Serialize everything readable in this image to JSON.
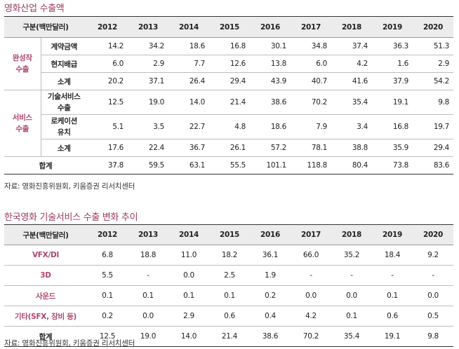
{
  "table1": {
    "title": "영화산업 수출액",
    "header_label": "구분(백만달러)",
    "years": [
      "2012",
      "2013",
      "2014",
      "2015",
      "2016",
      "2017",
      "2018",
      "2019",
      "2020"
    ],
    "groups": [
      {
        "name_line1": "완성작",
        "name_line2": "수출",
        "rows": [
          {
            "label": "계약금액",
            "values": [
              "14.2",
              "34.2",
              "18.6",
              "16.8",
              "30.1",
              "34.8",
              "37.4",
              "36.3",
              "51.3"
            ]
          },
          {
            "label": "현지배급",
            "values": [
              "6.0",
              "2.9",
              "7.7",
              "12.6",
              "13.8",
              "6.0",
              "4.2",
              "1.6",
              "2.9"
            ]
          },
          {
            "label": "소계",
            "values": [
              "20.2",
              "37.1",
              "26.4",
              "29.4",
              "43.9",
              "40.7",
              "41.6",
              "37.9",
              "54.2"
            ]
          }
        ]
      },
      {
        "name_line1": "서비스",
        "name_line2": "수출",
        "rows": [
          {
            "label_line1": "기술서비스",
            "label_line2": "수출",
            "values": [
              "12.5",
              "19.0",
              "14.0",
              "21.4",
              "38.6",
              "70.2",
              "35.4",
              "19.1",
              "9.8"
            ]
          },
          {
            "label_line1": "로케이션",
            "label_line2": "유치",
            "values": [
              "5.1",
              "3.5",
              "22.7",
              "4.8",
              "18.6",
              "7.9",
              "3.4",
              "16.8",
              "19.7"
            ]
          },
          {
            "label": "소계",
            "values": [
              "17.6",
              "22.4",
              "36.7",
              "26.1",
              "57.2",
              "78.1",
              "38.8",
              "35.9",
              "29.4"
            ]
          }
        ]
      }
    ],
    "total": {
      "label": "합계",
      "values": [
        "37.8",
        "59.5",
        "63.1",
        "55.5",
        "101.1",
        "118.8",
        "80.4",
        "73.8",
        "83.6"
      ]
    },
    "source": "자료: 영화진흥위원회, 키움증권 리서치센터"
  },
  "table2": {
    "title": "한국영화 기술서비스 수출 변화 추이",
    "header_label": "구분(백만달러)",
    "years": [
      "2012",
      "2013",
      "2014",
      "2015",
      "2016",
      "2017",
      "2018",
      "2019",
      "2020"
    ],
    "rows": [
      {
        "label": "VFX/DI",
        "values": [
          "6.8",
          "18.8",
          "11.0",
          "18.2",
          "36.1",
          "66.0",
          "35.2",
          "18.4",
          "9.2"
        ]
      },
      {
        "label": "3D",
        "values": [
          "5.5",
          "-",
          "0.0",
          "2.5",
          "1.9",
          "-",
          "-",
          "-",
          "-"
        ]
      },
      {
        "label": "사운드",
        "values": [
          "0.1",
          "0.1",
          "0.1",
          "0.1",
          "0.2",
          "0.0",
          "0.0",
          "0.1",
          "0.0"
        ]
      },
      {
        "label": "기타(SFX, 장비 등)",
        "values": [
          "0.2",
          "0.0",
          "2.9",
          "0.6",
          "0.4",
          "4.2",
          "0.1",
          "0.6",
          "0.5"
        ]
      }
    ],
    "total": {
      "label": "합계",
      "values": [
        "12.5",
        "19.0",
        "14.0",
        "21.4",
        "38.6",
        "70.2",
        "35.4",
        "19.1",
        "9.8"
      ]
    },
    "source": "자료: 영화진흥위원회, 키움증권 리서치센터"
  }
}
